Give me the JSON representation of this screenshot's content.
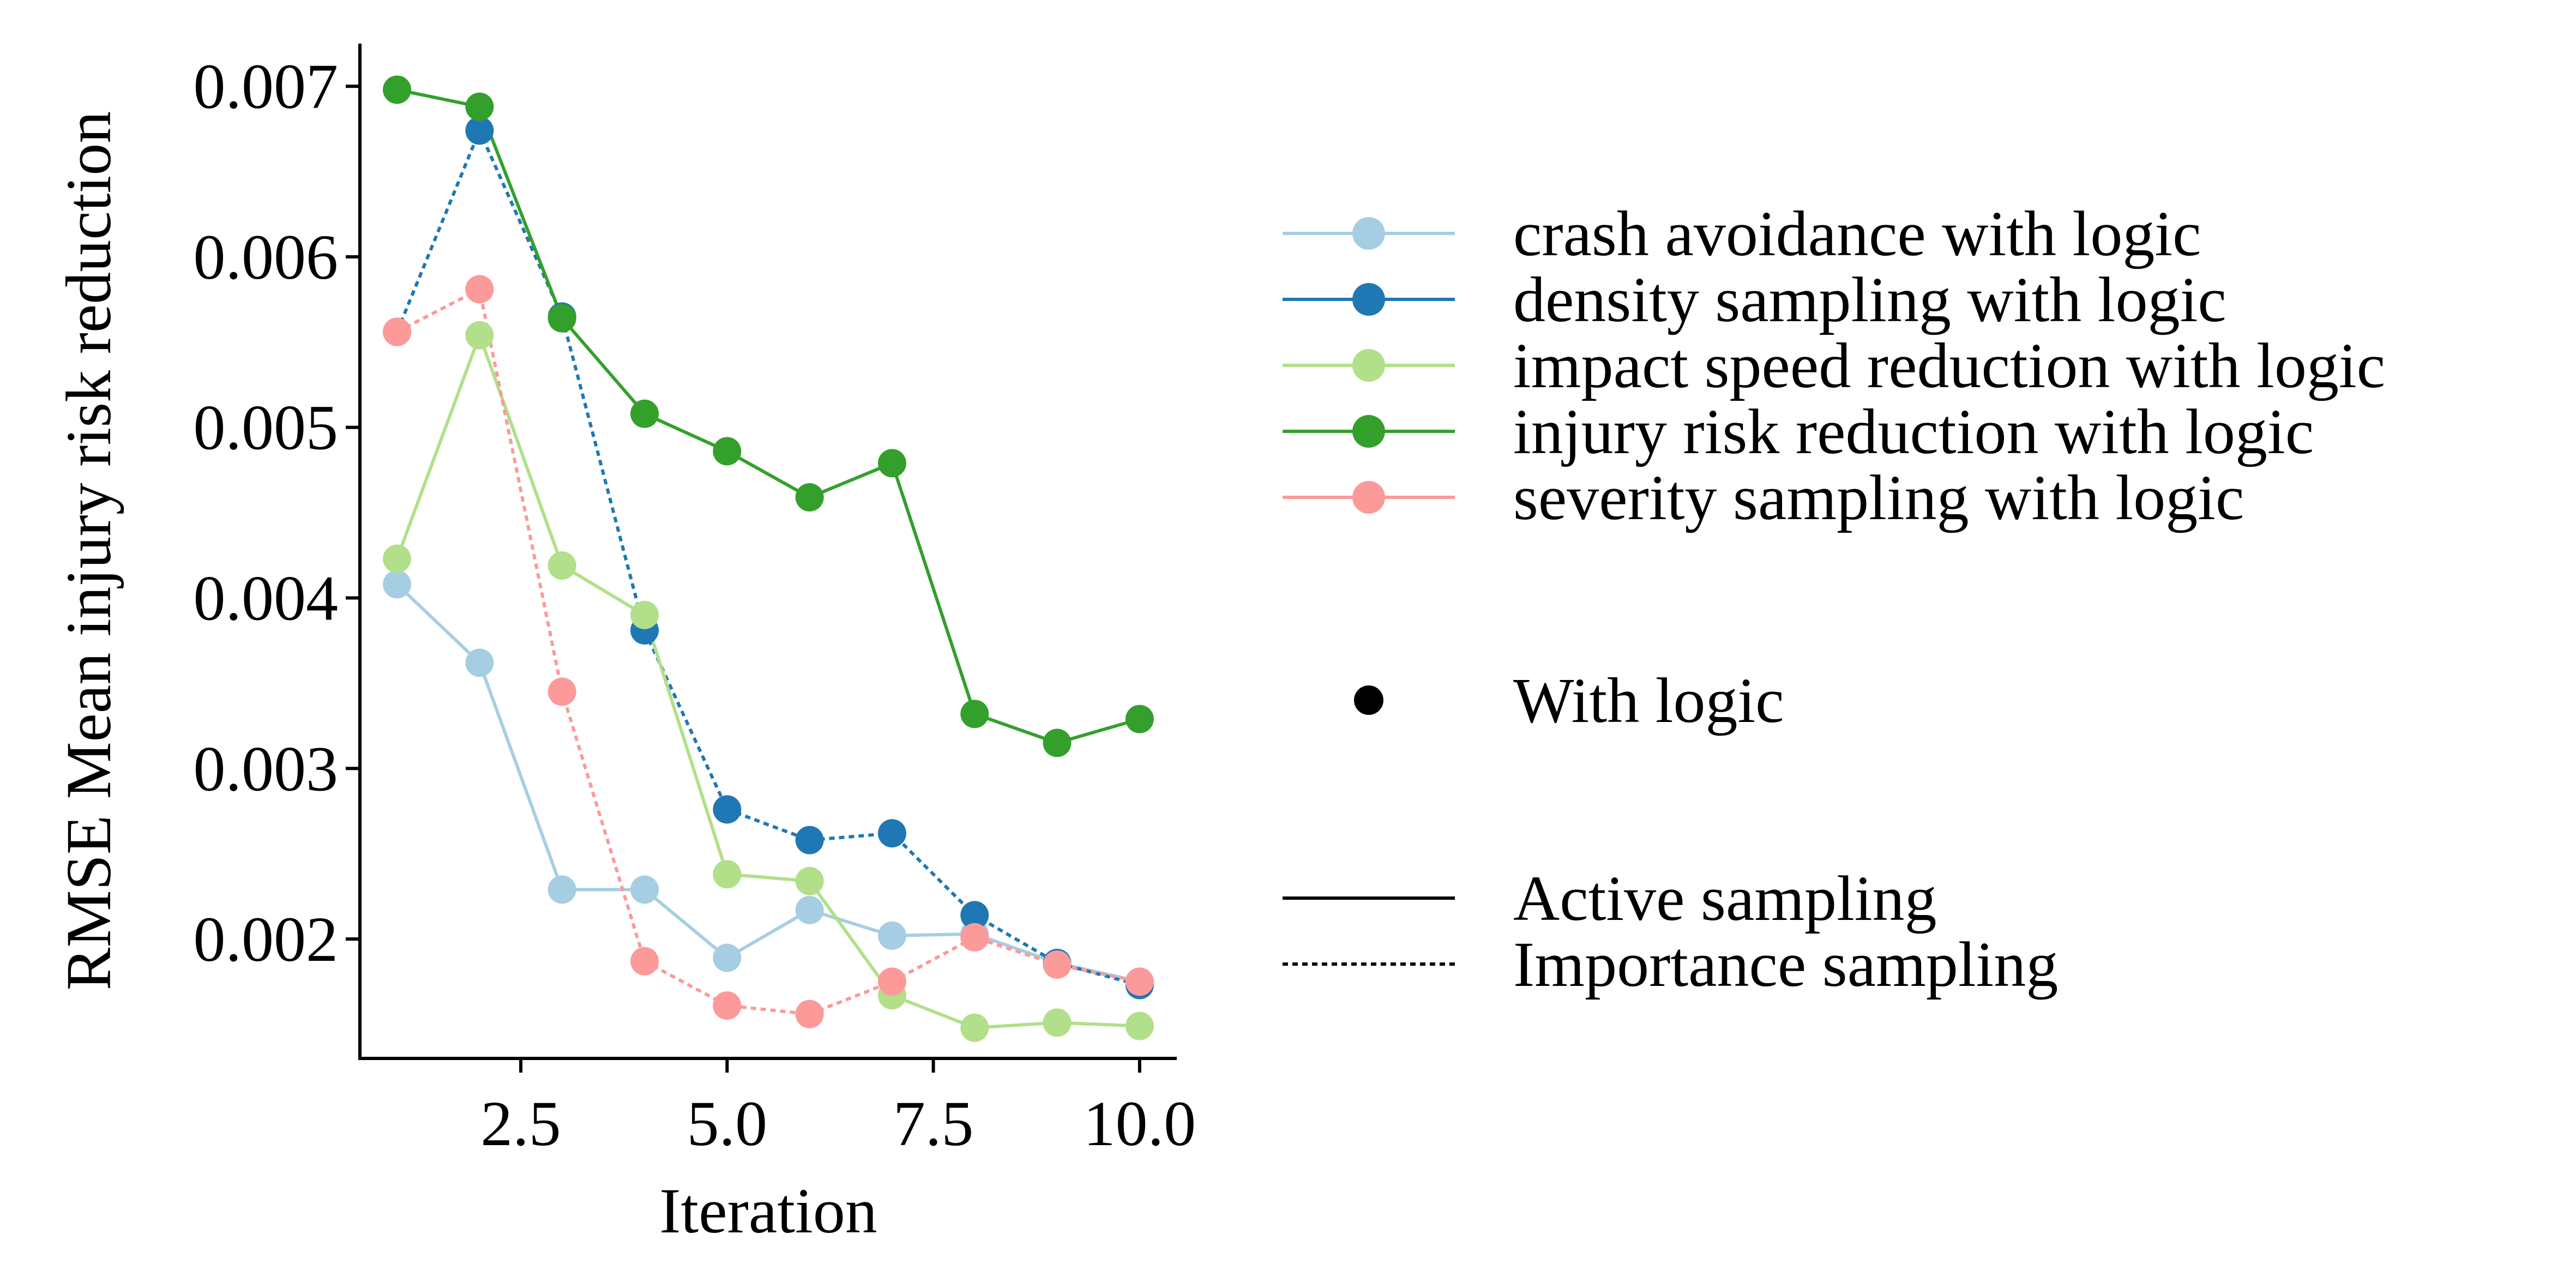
{
  "chart_data": {
    "type": "line",
    "xlabel": "Iteration",
    "ylabel": "RMSE Mean injury risk reduction",
    "xlim": [
      0.55,
      10.45
    ],
    "ylim": [
      0.0013,
      0.00725
    ],
    "xticks": [
      2.5,
      5.0,
      7.5,
      10.0
    ],
    "xtick_labels": [
      "2.5",
      "5.0",
      "7.5",
      "10.0"
    ],
    "yticks": [
      0.002,
      0.003,
      0.004,
      0.005,
      0.006,
      0.007
    ],
    "ytick_labels": [
      "0.002",
      "0.003",
      "0.004",
      "0.005",
      "0.006",
      "0.007"
    ],
    "grid": false,
    "legend_position": "right",
    "x": [
      1,
      2,
      3,
      4,
      5,
      6,
      7,
      8,
      9,
      10
    ],
    "series": [
      {
        "name": "crash avoidance with logic",
        "color": "#a6cee3",
        "linestyle": "solid",
        "values": [
          0.00408,
          0.00362,
          0.00229,
          0.00229,
          0.00189,
          0.00217,
          0.00202,
          0.00203,
          0.00186,
          0.00175
        ]
      },
      {
        "name": "density sampling with logic",
        "color": "#1f78b4",
        "linestyle": "dotted",
        "values": [
          0.00556,
          0.00674,
          0.00565,
          0.00381,
          0.00276,
          0.00258,
          0.00262,
          0.00214,
          0.00186,
          0.00173
        ]
      },
      {
        "name": "impact speed reduction with logic",
        "color": "#b2df8a",
        "linestyle": "solid",
        "values": [
          0.00423,
          0.00554,
          0.00419,
          0.0039,
          0.00238,
          0.00234,
          0.00167,
          0.00148,
          0.00151,
          0.00149
        ]
      },
      {
        "name": "injury risk reduction with logic",
        "color": "#33a02c",
        "linestyle": "solid",
        "values": [
          0.00698,
          0.00688,
          0.00564,
          0.00508,
          0.00486,
          0.00459,
          0.00479,
          0.00332,
          0.00315,
          0.00329
        ]
      },
      {
        "name": "severity sampling with logic",
        "color": "#fb9a99",
        "linestyle": "dotted",
        "values": [
          0.00556,
          0.00581,
          0.00345,
          0.00187,
          0.00161,
          0.00156,
          0.00175,
          0.00201,
          0.00185,
          0.00175
        ]
      }
    ],
    "shape_legend": {
      "label": "With logic"
    },
    "linetype_legend": [
      {
        "label": "Active sampling",
        "linestyle": "solid"
      },
      {
        "label": "Importance sampling",
        "linestyle": "dotted"
      }
    ]
  }
}
